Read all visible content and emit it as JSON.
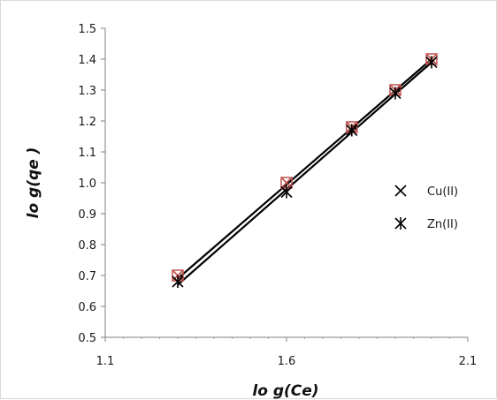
{
  "chart_data": {
    "type": "scatter",
    "title": "",
    "xlabel": "lo g(Ce)",
    "ylabel": "lo g(qe )",
    "xlim": [
      1.1,
      2.1
    ],
    "ylim": [
      0.5,
      1.5
    ],
    "x_ticks": [
      "1.1",
      "1.6",
      "2.1"
    ],
    "y_ticks": [
      "0.5",
      "0.6",
      "0.7",
      "0.8",
      "0.9",
      "1.0",
      "1.1",
      "1.2",
      "1.3",
      "1.4",
      "1.5"
    ],
    "grid": false,
    "legend_position": "right",
    "series": [
      {
        "name": "Cu(II)",
        "marker": "x",
        "color": "#c0504d",
        "x": [
          1.3,
          1.6,
          1.78,
          1.9,
          2.0
        ],
        "y": [
          0.7,
          1.0,
          1.18,
          1.3,
          1.4
        ],
        "trendline": {
          "x": [
            1.3,
            2.0
          ],
          "y": [
            0.69,
            1.4
          ]
        }
      },
      {
        "name": "Zn(II)",
        "marker": "star",
        "color": "#000000",
        "x": [
          1.3,
          1.6,
          1.78,
          1.9,
          2.0
        ],
        "y": [
          0.68,
          0.97,
          1.17,
          1.29,
          1.39
        ],
        "trendline": {
          "x": [
            1.3,
            2.0
          ],
          "y": [
            0.67,
            1.39
          ]
        }
      }
    ]
  }
}
